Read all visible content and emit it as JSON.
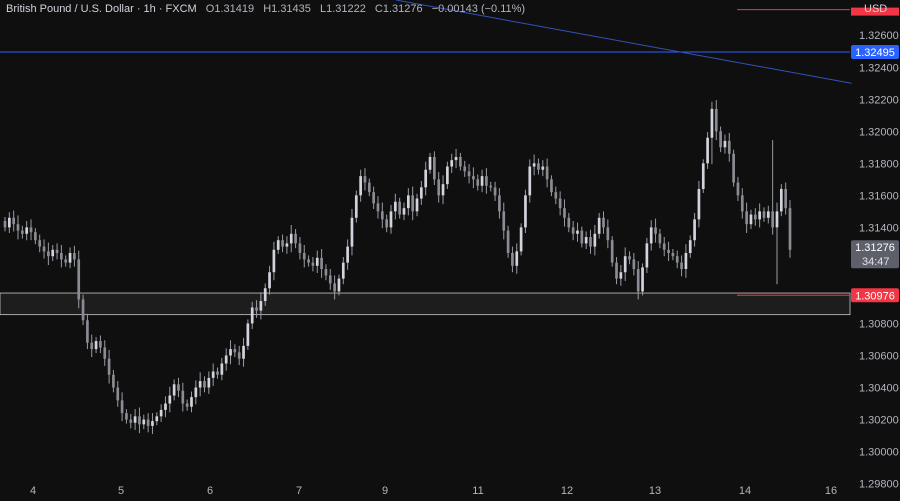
{
  "header": {
    "symbol": "British Pound / U.S. Dollar · 1h · FXCM",
    "o_label": "O",
    "o_value": "1.31419",
    "h_label": "H",
    "h_value": "1.31435",
    "l_label": "L",
    "l_value": "1.31222",
    "c_label": "C",
    "c_value": "1.31276",
    "change": "−0.00143 (−0.11%)",
    "currency": "USD"
  },
  "colors": {
    "background": "#0f0f0f",
    "candle": "#d1d4dc",
    "blue_line": "#2962ff",
    "red_level": "#f23645",
    "zone_border": "#c8c8c8",
    "price_tag": "#5d606b"
  },
  "chart_data": {
    "type": "candlestick",
    "ylim": [
      1.2976,
      1.3282
    ],
    "y_ticks": [
      "1.32600",
      "1.32400",
      "1.32200",
      "1.32000",
      "1.31800",
      "1.31600",
      "1.31400",
      "1.30800",
      "1.30600",
      "1.30400",
      "1.30200",
      "1.30000",
      "1.29800"
    ],
    "x_ticks": [
      "4",
      "5",
      "6",
      "7",
      "9",
      "11",
      "12",
      "13",
      "14",
      "16"
    ],
    "levels": [
      {
        "label": "1.32495",
        "value": 1.32495
      },
      {
        "label": "1.30976",
        "value": 1.30976
      },
      {
        "label": "1.31276",
        "value": 1.31276
      },
      {
        "label": "34:47",
        "value": 1.3113
      }
    ],
    "support_zone": [
      1.30855,
      1.3099
    ],
    "trendline": [
      {
        "x": 0.44,
        "y": 1.3282
      },
      {
        "x": 0.946,
        "y": 1.323
      }
    ],
    "closes": [
      1.314,
      1.3146,
      1.3142,
      1.3138,
      1.3136,
      1.314,
      1.3137,
      1.3132,
      1.3128,
      1.3125,
      1.3122,
      1.3126,
      1.3124,
      1.312,
      1.3118,
      1.3124,
      1.312,
      1.3095,
      1.3082,
      1.3068,
      1.3064,
      1.3069,
      1.3065,
      1.3058,
      1.3048,
      1.304,
      1.3032,
      1.3024,
      1.302,
      1.3018,
      1.3022,
      1.3017,
      1.302,
      1.3016,
      1.3019,
      1.3022,
      1.3026,
      1.303,
      1.3035,
      1.3042,
      1.3038,
      1.303,
      1.3028,
      1.3034,
      1.304,
      1.3044,
      1.304,
      1.3046,
      1.305,
      1.3048,
      1.3055,
      1.306,
      1.3064,
      1.3062,
      1.3058,
      1.3066,
      1.308,
      1.309,
      1.3088,
      1.3094,
      1.3102,
      1.3112,
      1.3126,
      1.3132,
      1.3128,
      1.313,
      1.3136,
      1.313,
      1.3124,
      1.312,
      1.3118,
      1.3116,
      1.3121,
      1.3114,
      1.311,
      1.3105,
      1.31,
      1.3108,
      1.3118,
      1.3128,
      1.3146,
      1.316,
      1.3172,
      1.3168,
      1.3162,
      1.3155,
      1.315,
      1.3145,
      1.314,
      1.315,
      1.3156,
      1.3148,
      1.3152,
      1.316,
      1.315,
      1.3158,
      1.3165,
      1.3176,
      1.3184,
      1.317,
      1.316,
      1.3167,
      1.3178,
      1.3182,
      1.3184,
      1.3178,
      1.3175,
      1.3172,
      1.317,
      1.3166,
      1.3172,
      1.3166,
      1.3165,
      1.316,
      1.315,
      1.3138,
      1.3124,
      1.3116,
      1.3125,
      1.314,
      1.316,
      1.3178,
      1.318,
      1.3176,
      1.3178,
      1.317,
      1.3162,
      1.3158,
      1.3152,
      1.3146,
      1.314,
      1.3136,
      1.3138,
      1.313,
      1.3134,
      1.3128,
      1.3136,
      1.3146,
      1.314,
      1.3132,
      1.3118,
      1.3108,
      1.3112,
      1.3122,
      1.312,
      1.3114,
      1.31,
      1.3115,
      1.313,
      1.314,
      1.3136,
      1.313,
      1.3126,
      1.3124,
      1.3122,
      1.3118,
      1.3114,
      1.3124,
      1.3132,
      1.3145,
      1.3164,
      1.318,
      1.3196,
      1.3214,
      1.32,
      1.319,
      1.3194,
      1.3186,
      1.3168,
      1.316,
      1.315,
      1.3142,
      1.3148,
      1.3145,
      1.315,
      1.3146,
      1.315,
      1.314,
      1.315,
      1.3164,
      1.3152,
      1.3126
    ],
    "last_price": 1.31276
  }
}
